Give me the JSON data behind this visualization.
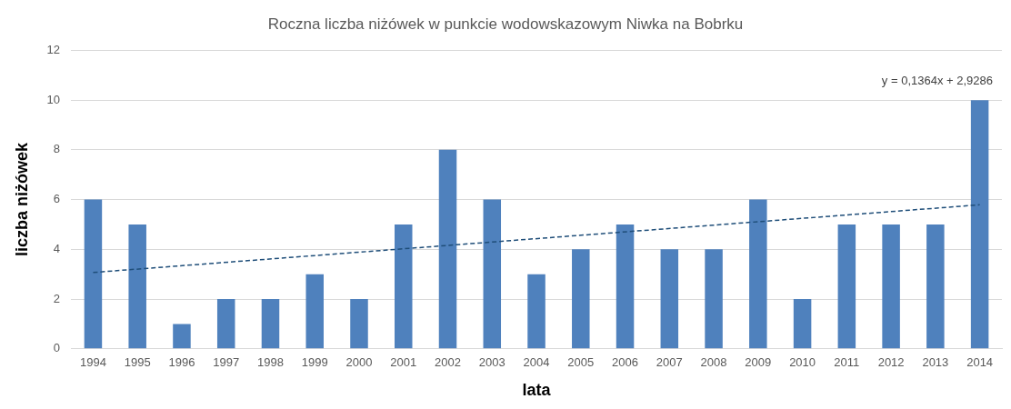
{
  "chart_data": {
    "type": "bar",
    "title": "Roczna liczba niżówek w punkcie wodowskazowym Niwka na Bobrku",
    "xlabel": "lata",
    "ylabel": "liczba niżówek",
    "categories": [
      "1994",
      "1995",
      "1996",
      "1997",
      "1998",
      "1999",
      "2000",
      "2001",
      "2002",
      "2003",
      "2004",
      "2005",
      "2006",
      "2007",
      "2008",
      "2009",
      "2010",
      "2011",
      "2012",
      "2013",
      "2014"
    ],
    "series": [
      {
        "color": "#4f81bd",
        "values": [
          6,
          5,
          1,
          2,
          2,
          3,
          2,
          5,
          8,
          6,
          3,
          4,
          5,
          4,
          4,
          6,
          2,
          5,
          5,
          5,
          10
        ]
      },
      {
        "type": "line",
        "color": "#1f4e79",
        "line_style": "dashed",
        "values": [
          3.07,
          null,
          null,
          null,
          null,
          null,
          null,
          null,
          null,
          null,
          null,
          null,
          null,
          null,
          null,
          null,
          null,
          null,
          null,
          null,
          5.79
        ]
      }
    ],
    "ylim": [
      0,
      12
    ],
    "yticks": [
      0,
      2,
      4,
      6,
      8,
      10,
      12
    ],
    "grid": "y",
    "legend": false,
    "marker": "none",
    "annotations": [
      "y = 0,1364x + 2,9286"
    ]
  }
}
